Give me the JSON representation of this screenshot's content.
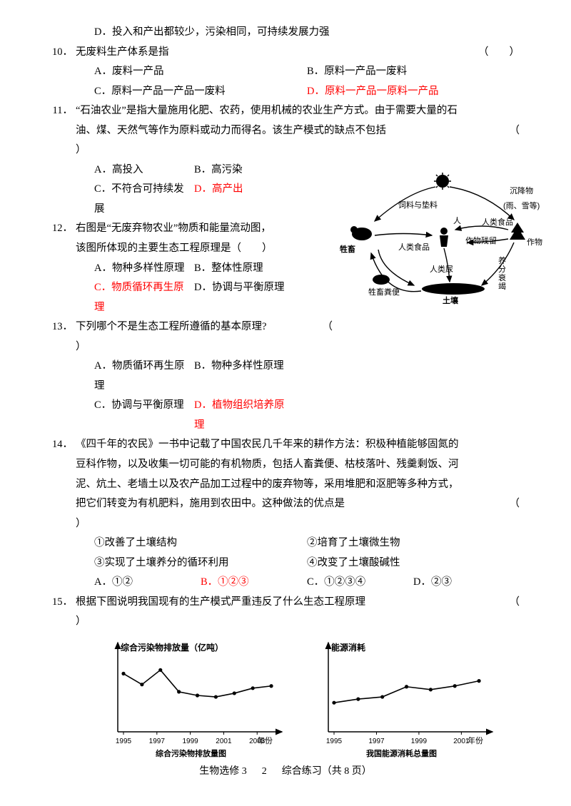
{
  "q9d": "D．投入和产出都较少，污染相同，可持续发展力强",
  "q10": {
    "num": "10．",
    "stem": "无废料生产体系是指",
    "paren": "（　　）",
    "A": "A．废料一产品",
    "B": "B．原料一产品一废料",
    "C": "C．原料一产品一产品一废料",
    "D": "D．原料一产品一原料一产品"
  },
  "q11": {
    "num": "11．",
    "stem1": "“石油农业”是指大量施用化肥、农药，使用机械的农业生产方式。由于需要大量的石",
    "stem2": "油、煤、天然气等作为原料或动力而得名。该生产模式的缺点不包括",
    "paren_open": "（",
    "paren_close": "）",
    "A": "A．高投入",
    "B": "B．高污染",
    "C": "C．不符合可持续发展",
    "D": "D．高产出"
  },
  "q12": {
    "num": "12．",
    "stem1": "右图是“无废弃物农业”物质和能量流动图，",
    "stem2": "该图所体现的主要生态工程原理是（　　）",
    "A": "A．物种多样性原理",
    "B": "B．整体性原理",
    "C": "C．物质循环再生原理",
    "D": "D．协调与平衡原理"
  },
  "q13": {
    "num": "13．",
    "stem": "下列哪个不是生态工程所遵循的基本原理?",
    "paren_open": "（",
    "paren_close": "）",
    "A": "A．物质循环再生原理",
    "B": "B．物种多样性原理",
    "C": "C．协调与平衡原理",
    "D": "D．植物组织培养原理"
  },
  "q14": {
    "num": "14．",
    "stem1": "《四千年的农民》一书中记载了中国农民几千年来的耕作方法：积极种植能够固氮的",
    "stem2": "豆科作物，以及收集一切可能的有机物质，包括人畜粪便、枯枝落叶、残羹剩饭、河",
    "stem3": "泥、炕土、老墙土以及农产品加工过程中的废弃物等，采用堆肥和沤肥等多种方式，",
    "stem4": "把它们转变为有机肥料，施用到农田中。这种做法的优点是",
    "paren_open": "（",
    "paren_close": "）",
    "s1": "①改善了土壤结构",
    "s2": "②培育了土壤微生物",
    "s3": "③实现了土壤养分的循环利用",
    "s4": "④改变了土壤酸碱性",
    "A": "A．①②",
    "B": "B．①②③",
    "C": "C．①②③④",
    "D": "D．②③"
  },
  "q15": {
    "num": "15．",
    "stem": "根据下图说明我国现有的生产模式严重违反了什么生态工程原理",
    "paren_open": "（",
    "paren_close": "）"
  },
  "diagram": {
    "labels": {
      "feed": "饲料与垫料",
      "precip": "沉降物\n(雨、雪等)",
      "human": "人",
      "humanfood": "人类食品",
      "humanfood2": "人类食品",
      "crop": "作物",
      "cropresidue": "作物残留",
      "livestock": "牲畜",
      "manure": "牲畜粪便",
      "humanwaste": "人类尿",
      "soil": "土壤",
      "nutrient": "养\n分\n衰\n竭"
    }
  },
  "chart1": {
    "title": "综合污染物排放量（亿吨）",
    "xlabel": "综合污染物排放量图",
    "yearlabel": "年份",
    "xticks": [
      "1995",
      "1997",
      "1999",
      "2001",
      "2003"
    ],
    "points": [
      [
        0,
        80
      ],
      [
        1,
        65
      ],
      [
        2,
        85
      ],
      [
        3,
        55
      ],
      [
        4,
        50
      ],
      [
        5,
        48
      ],
      [
        6,
        53
      ],
      [
        7,
        60
      ],
      [
        8,
        63
      ]
    ],
    "line_color": "#000000",
    "marker": "dot"
  },
  "chart2": {
    "title": "能源消耗",
    "xlabel": "我国能源消耗总量图",
    "yearlabel": "年份",
    "xticks": [
      "1995",
      "1997",
      "1999",
      "2001"
    ],
    "points": [
      [
        0,
        40
      ],
      [
        1,
        45
      ],
      [
        2,
        48
      ],
      [
        3,
        62
      ],
      [
        4,
        58
      ],
      [
        5,
        63
      ],
      [
        6,
        70
      ]
    ],
    "line_color": "#000000",
    "marker": "dot"
  },
  "footer": {
    "left": "生物选修 3",
    "mid": "2",
    "right": "综合练习（共 8 页）"
  }
}
